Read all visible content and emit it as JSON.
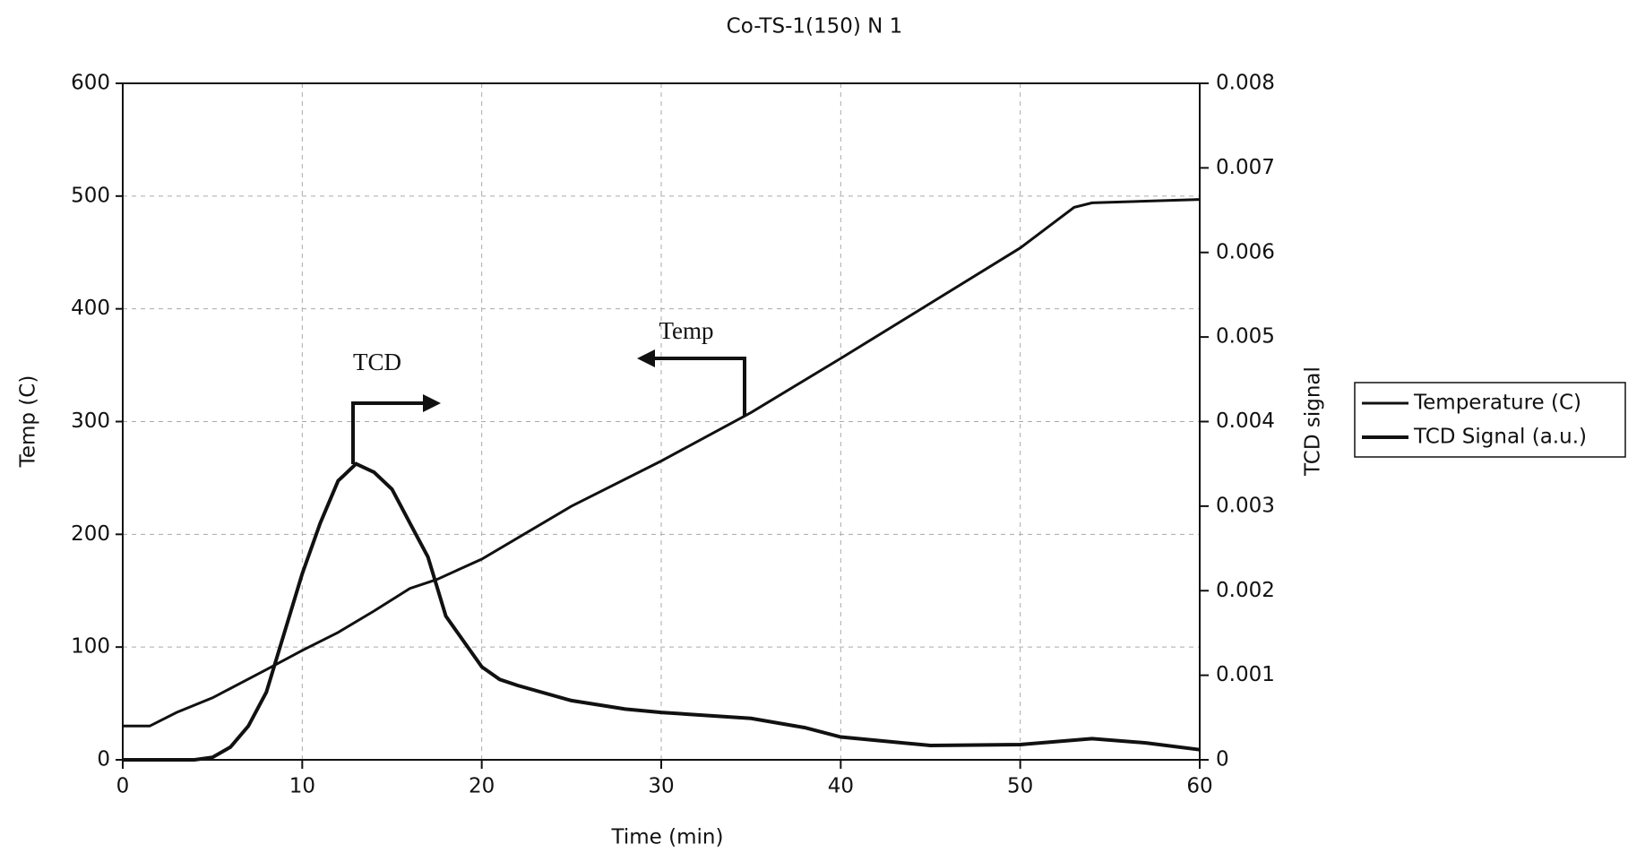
{
  "chart_data": {
    "type": "line",
    "title": "Co-TS-1(150) N 1",
    "x_label": "Time (min)",
    "y_label": "Temp (C)",
    "y2_label": "TCD signal",
    "xlim": [
      0,
      60
    ],
    "xticks": [
      0,
      10,
      20,
      30,
      40,
      50,
      60
    ],
    "ylim": [
      0,
      600
    ],
    "yticks": [
      0,
      100,
      200,
      300,
      400,
      500,
      600
    ],
    "y2lim": [
      0,
      0.008
    ],
    "y2ticks": [
      0,
      0.001,
      0.002,
      0.003,
      0.004,
      0.005,
      0.006,
      0.007,
      0.008
    ],
    "grid": true,
    "legend": "right",
    "annotations": [
      "TCD",
      "Temp"
    ],
    "series": [
      {
        "name": "Temperature (C)",
        "color": "#111111",
        "x": [
          0,
          1.5,
          3,
          5,
          8,
          10,
          12,
          14,
          16,
          17.5,
          20,
          25,
          30,
          35,
          40,
          45,
          50,
          53,
          54,
          60
        ],
        "values": [
          30,
          30,
          42,
          55,
          80,
          97,
          113,
          132,
          152,
          160,
          178,
          225,
          265,
          308,
          356,
          405,
          454,
          490,
          494,
          497
        ]
      },
      {
        "name": "TCD Signal (a.u.)",
        "color": "#111111",
        "axis": "y2",
        "x": [
          0,
          4,
          5,
          6,
          7,
          8,
          9,
          10,
          11,
          12,
          13,
          14,
          15,
          16,
          17,
          18,
          19,
          20,
          21,
          22,
          25,
          28,
          30,
          35,
          38,
          40,
          45,
          50,
          54,
          57,
          60
        ],
        "values": [
          0,
          0,
          3e-05,
          0.00015,
          0.0004,
          0.0008,
          0.0015,
          0.0022,
          0.0028,
          0.0033,
          0.0035,
          0.0034,
          0.0032,
          0.0028,
          0.0024,
          0.0017,
          0.0014,
          0.0011,
          0.00095,
          0.00088,
          0.0007,
          0.0006,
          0.00056,
          0.00049,
          0.00038,
          0.00027,
          0.00017,
          0.00018,
          0.00025,
          0.0002,
          0.00012
        ]
      }
    ]
  }
}
